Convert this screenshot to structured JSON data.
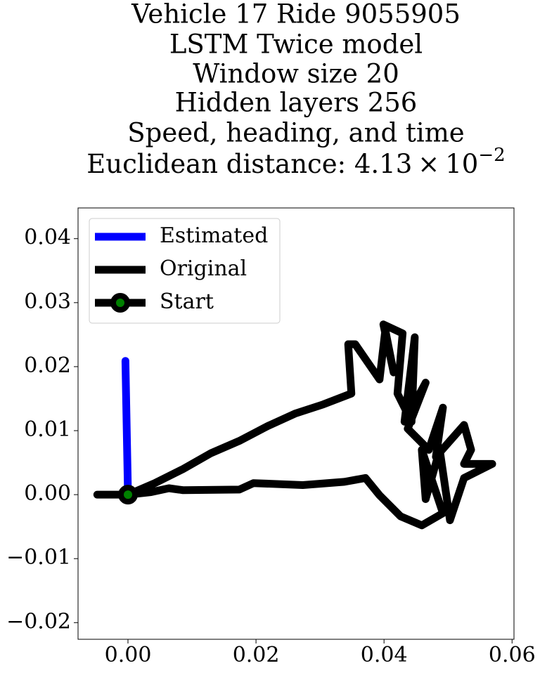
{
  "chart_data": {
    "type": "line",
    "title": [
      "Vehicle 17 Ride 9055905",
      "LSTM Twice model",
      "Window size 20",
      "Hidden layers 256",
      "Speed, heading, and time"
    ],
    "subtitle": [
      "Euclidean distance: 4.13",
      "×",
      "10",
      "−2"
    ],
    "series": [
      {
        "name": "Estimated",
        "color": "#0000ff",
        "x": [
          -0.0004,
          0
        ],
        "values": [
          0.0209,
          0
        ]
      },
      {
        "name": "Original",
        "color": "#000000",
        "x": [
          0,
          0.0042,
          0.0086,
          0.013,
          0.0174,
          0.0218,
          0.0262,
          0.0305,
          0.0349,
          0.0344,
          0.0355,
          0.0393,
          0.0402,
          0.0415,
          0.0399,
          0.0429,
          0.0421,
          0.0443,
          0.0448,
          0.0432,
          0.0465,
          0.0437,
          0.047,
          0.0492,
          0.0481,
          0.0525,
          0.0536,
          0.0525,
          0.0569,
          0.0525,
          0.0503,
          0.0487,
          0.0465,
          0.0459,
          0.0492,
          0.0459,
          0.0426,
          0.0393,
          0.0371,
          0.0338,
          0.0273,
          0.0196,
          0.0174,
          0.0086,
          0.0064,
          0.0036,
          0,
          -0.0048
        ],
        "values": [
          0,
          0.0018,
          0.004,
          0.0065,
          0.0084,
          0.0107,
          0.0127,
          0.0141,
          0.0158,
          0.0235,
          0.0235,
          0.018,
          0.0257,
          0.0191,
          0.0266,
          0.0252,
          0.0158,
          0.0114,
          0.0246,
          0.0114,
          0.0175,
          0.0103,
          0.007,
          0.0136,
          0.0059,
          0.0109,
          0.007,
          0.0048,
          0.0048,
          0.0026,
          -0.004,
          0.007,
          -0.0007,
          0.007,
          -0.0029,
          -0.0048,
          -0.0034,
          -0.0001,
          0.0026,
          0.002,
          0.0015,
          0.0018,
          0.0008,
          0.0007,
          0.001,
          0.0004,
          0,
          0
        ]
      },
      {
        "name": "Start",
        "color": "#000000",
        "marker_color": "#008000",
        "x": [
          0
        ],
        "values": [
          0
        ]
      }
    ],
    "xlim": [
      -0.0078,
      0.0603
    ],
    "ylim": [
      -0.0226,
      0.0448
    ],
    "xticks": [
      {
        "value": 0,
        "label": "0.00"
      },
      {
        "value": 0.02,
        "label": "0.02"
      },
      {
        "value": 0.04,
        "label": "0.04"
      },
      {
        "value": 0.06,
        "label": "0.06"
      }
    ],
    "yticks": [
      {
        "value": -0.02,
        "label": "−0.02"
      },
      {
        "value": -0.01,
        "label": "−0.01"
      },
      {
        "value": 0,
        "label": "0.00"
      },
      {
        "value": 0.01,
        "label": "0.01"
      },
      {
        "value": 0.02,
        "label": "0.02"
      },
      {
        "value": 0.03,
        "label": "0.03"
      },
      {
        "value": 0.04,
        "label": "0.04"
      }
    ],
    "legend": "upper left",
    "grid": false
  }
}
